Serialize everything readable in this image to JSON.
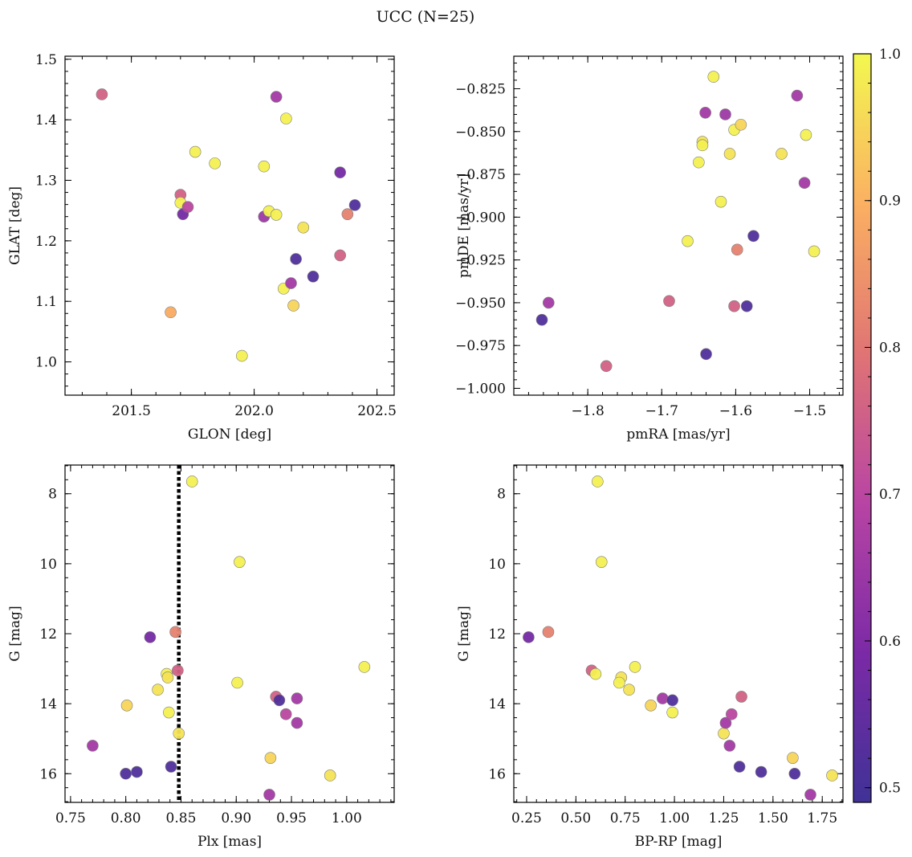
{
  "title": "UCC (N=25)",
  "chart_data": [
    {
      "type": "scatter",
      "xlabel": "GLON [deg]",
      "ylabel": "GLAT [deg]",
      "xlim": [
        201.23,
        202.57
      ],
      "ylim": [
        0.945,
        1.505
      ],
      "xticks": [
        201.5,
        202.0,
        202.5
      ],
      "xtick_labels": [
        "201.5",
        "202.0",
        "202.5"
      ],
      "yticks": [
        1.0,
        1.1,
        1.2,
        1.3,
        1.4,
        1.5
      ],
      "ytick_labels": [
        "1.0",
        "1.1",
        "1.2",
        "1.3",
        "1.4",
        "1.5"
      ],
      "points": [
        {
          "x": 201.38,
          "y": 1.442,
          "c": 0.76
        },
        {
          "x": 201.66,
          "y": 1.082,
          "c": 0.89
        },
        {
          "x": 201.7,
          "y": 1.276,
          "c": 0.76
        },
        {
          "x": 201.7,
          "y": 1.263,
          "c": 0.99
        },
        {
          "x": 201.71,
          "y": 1.244,
          "c": 0.58
        },
        {
          "x": 201.73,
          "y": 1.256,
          "c": 0.7
        },
        {
          "x": 201.76,
          "y": 1.347,
          "c": 0.99
        },
        {
          "x": 201.84,
          "y": 1.328,
          "c": 0.99
        },
        {
          "x": 201.95,
          "y": 1.01,
          "c": 0.99
        },
        {
          "x": 202.04,
          "y": 1.323,
          "c": 0.99
        },
        {
          "x": 202.04,
          "y": 1.24,
          "c": 0.65
        },
        {
          "x": 202.06,
          "y": 1.249,
          "c": 0.99
        },
        {
          "x": 202.09,
          "y": 1.438,
          "c": 0.66
        },
        {
          "x": 202.09,
          "y": 1.243,
          "c": 0.99
        },
        {
          "x": 202.12,
          "y": 1.121,
          "c": 0.99
        },
        {
          "x": 202.13,
          "y": 1.402,
          "c": 0.99
        },
        {
          "x": 202.15,
          "y": 1.13,
          "c": 0.66
        },
        {
          "x": 202.16,
          "y": 1.093,
          "c": 0.95
        },
        {
          "x": 202.17,
          "y": 1.17,
          "c": 0.52
        },
        {
          "x": 202.2,
          "y": 1.222,
          "c": 0.97
        },
        {
          "x": 202.24,
          "y": 1.141,
          "c": 0.52
        },
        {
          "x": 202.35,
          "y": 1.313,
          "c": 0.58
        },
        {
          "x": 202.35,
          "y": 1.176,
          "c": 0.76
        },
        {
          "x": 202.38,
          "y": 1.244,
          "c": 0.82
        },
        {
          "x": 202.41,
          "y": 1.259,
          "c": 0.52
        }
      ]
    },
    {
      "type": "scatter",
      "xlabel": "pmRA [mas/yr]",
      "ylabel": "pmDE [mas/yr]",
      "xlim": [
        -1.9,
        -1.455
      ],
      "ylim": [
        -1.004,
        -0.806
      ],
      "xticks": [
        -1.8,
        -1.7,
        -1.6,
        -1.5
      ],
      "xtick_labels": [
        "−1.8",
        "−1.7",
        "−1.6",
        "−1.5"
      ],
      "yticks": [
        -1.0,
        -0.975,
        -0.95,
        -0.925,
        -0.9,
        -0.875,
        -0.85,
        -0.825
      ],
      "ytick_labels": [
        "−1.000",
        "−0.975",
        "−0.950",
        "−0.925",
        "−0.900",
        "−0.875",
        "−0.850",
        "−0.825"
      ],
      "points": [
        {
          "x": -1.862,
          "y": -0.96,
          "c": 0.52
        },
        {
          "x": -1.853,
          "y": -0.95,
          "c": 0.66
        },
        {
          "x": -1.775,
          "y": -0.987,
          "c": 0.76
        },
        {
          "x": -1.69,
          "y": -0.949,
          "c": 0.76
        },
        {
          "x": -1.665,
          "y": -0.914,
          "c": 0.99
        },
        {
          "x": -1.65,
          "y": -0.868,
          "c": 0.99
        },
        {
          "x": -1.645,
          "y": -0.856,
          "c": 0.97
        },
        {
          "x": -1.645,
          "y": -0.858,
          "c": 0.99
        },
        {
          "x": -1.641,
          "y": -0.839,
          "c": 0.66
        },
        {
          "x": -1.64,
          "y": -0.98,
          "c": 0.52
        },
        {
          "x": -1.63,
          "y": -0.818,
          "c": 0.99
        },
        {
          "x": -1.62,
          "y": -0.891,
          "c": 0.99
        },
        {
          "x": -1.614,
          "y": -0.84,
          "c": 0.65
        },
        {
          "x": -1.608,
          "y": -0.863,
          "c": 0.97
        },
        {
          "x": -1.602,
          "y": -0.952,
          "c": 0.76
        },
        {
          "x": -1.602,
          "y": -0.849,
          "c": 0.99
        },
        {
          "x": -1.598,
          "y": -0.919,
          "c": 0.82
        },
        {
          "x": -1.593,
          "y": -0.846,
          "c": 0.95
        },
        {
          "x": -1.585,
          "y": -0.952,
          "c": 0.52
        },
        {
          "x": -1.576,
          "y": -0.911,
          "c": 0.52
        },
        {
          "x": -1.538,
          "y": -0.863,
          "c": 0.97
        },
        {
          "x": -1.517,
          "y": -0.829,
          "c": 0.66
        },
        {
          "x": -1.507,
          "y": -0.88,
          "c": 0.66
        },
        {
          "x": -1.505,
          "y": -0.852,
          "c": 0.99
        },
        {
          "x": -1.494,
          "y": -0.92,
          "c": 0.99
        }
      ]
    },
    {
      "type": "scatter",
      "xlabel": "Plx [mas]",
      "ylabel": "G [mag]",
      "xlim": [
        0.745,
        1.043
      ],
      "ylim": [
        16.82,
        7.18
      ],
      "y_inverted": true,
      "xticks": [
        0.75,
        0.8,
        0.85,
        0.9,
        0.95,
        1.0
      ],
      "xtick_labels": [
        "0.75",
        "0.80",
        "0.85",
        "0.90",
        "0.95",
        "1.00"
      ],
      "yticks": [
        8,
        10,
        12,
        14,
        16
      ],
      "ytick_labels": [
        "8",
        "10",
        "12",
        "14",
        "16"
      ],
      "vline": {
        "x": 0.848,
        "style": "dotted"
      },
      "points": [
        {
          "x": 0.77,
          "y": 15.2,
          "c": 0.66
        },
        {
          "x": 0.8,
          "y": 16.0,
          "c": 0.52
        },
        {
          "x": 0.81,
          "y": 15.95,
          "c": 0.52
        },
        {
          "x": 0.801,
          "y": 14.05,
          "c": 0.95
        },
        {
          "x": 0.822,
          "y": 12.1,
          "c": 0.58
        },
        {
          "x": 0.829,
          "y": 13.6,
          "c": 0.97
        },
        {
          "x": 0.837,
          "y": 13.15,
          "c": 0.99
        },
        {
          "x": 0.838,
          "y": 13.25,
          "c": 0.97
        },
        {
          "x": 0.839,
          "y": 14.25,
          "c": 0.99
        },
        {
          "x": 0.841,
          "y": 15.8,
          "c": 0.52
        },
        {
          "x": 0.845,
          "y": 11.95,
          "c": 0.82
        },
        {
          "x": 0.847,
          "y": 13.05,
          "c": 0.76
        },
        {
          "x": 0.848,
          "y": 14.85,
          "c": 0.97
        },
        {
          "x": 0.86,
          "y": 7.65,
          "c": 0.99
        },
        {
          "x": 0.901,
          "y": 13.4,
          "c": 0.99
        },
        {
          "x": 0.903,
          "y": 9.95,
          "c": 0.99
        },
        {
          "x": 0.93,
          "y": 16.6,
          "c": 0.66
        },
        {
          "x": 0.931,
          "y": 15.55,
          "c": 0.95
        },
        {
          "x": 0.936,
          "y": 13.8,
          "c": 0.76
        },
        {
          "x": 0.939,
          "y": 13.9,
          "c": 0.52
        },
        {
          "x": 0.945,
          "y": 14.3,
          "c": 0.7
        },
        {
          "x": 0.955,
          "y": 13.85,
          "c": 0.66
        },
        {
          "x": 0.955,
          "y": 14.55,
          "c": 0.66
        },
        {
          "x": 0.985,
          "y": 16.05,
          "c": 0.97
        },
        {
          "x": 1.016,
          "y": 12.95,
          "c": 0.99
        }
      ]
    },
    {
      "type": "scatter",
      "xlabel": "BP-RP [mag]",
      "ylabel": "G [mag]",
      "xlim": [
        0.185,
        1.855
      ],
      "ylim": [
        16.82,
        7.18
      ],
      "y_inverted": true,
      "xticks": [
        0.25,
        0.5,
        0.75,
        1.0,
        1.25,
        1.5,
        1.75
      ],
      "xtick_labels": [
        "0.25",
        "0.50",
        "0.75",
        "1.00",
        "1.25",
        "1.50",
        "1.75"
      ],
      "yticks": [
        8,
        10,
        12,
        14,
        16
      ],
      "ytick_labels": [
        "8",
        "10",
        "12",
        "14",
        "16"
      ],
      "points": [
        {
          "x": 0.26,
          "y": 12.1,
          "c": 0.58
        },
        {
          "x": 0.36,
          "y": 11.95,
          "c": 0.82
        },
        {
          "x": 0.58,
          "y": 13.05,
          "c": 0.76
        },
        {
          "x": 0.6,
          "y": 13.15,
          "c": 0.99
        },
        {
          "x": 0.61,
          "y": 7.65,
          "c": 0.99
        },
        {
          "x": 0.63,
          "y": 9.95,
          "c": 0.99
        },
        {
          "x": 0.73,
          "y": 13.25,
          "c": 0.97
        },
        {
          "x": 0.72,
          "y": 13.4,
          "c": 0.99
        },
        {
          "x": 0.77,
          "y": 13.6,
          "c": 0.97
        },
        {
          "x": 0.8,
          "y": 12.95,
          "c": 0.99
        },
        {
          "x": 0.88,
          "y": 14.05,
          "c": 0.95
        },
        {
          "x": 0.94,
          "y": 13.85,
          "c": 0.66
        },
        {
          "x": 0.99,
          "y": 13.9,
          "c": 0.52
        },
        {
          "x": 0.99,
          "y": 14.25,
          "c": 0.99
        },
        {
          "x": 1.25,
          "y": 14.85,
          "c": 0.97
        },
        {
          "x": 1.26,
          "y": 14.55,
          "c": 0.66
        },
        {
          "x": 1.28,
          "y": 15.2,
          "c": 0.66
        },
        {
          "x": 1.29,
          "y": 14.3,
          "c": 0.7
        },
        {
          "x": 1.34,
          "y": 13.8,
          "c": 0.76
        },
        {
          "x": 1.33,
          "y": 15.8,
          "c": 0.52
        },
        {
          "x": 1.44,
          "y": 15.95,
          "c": 0.52
        },
        {
          "x": 1.6,
          "y": 15.55,
          "c": 0.95
        },
        {
          "x": 1.61,
          "y": 16.0,
          "c": 0.52
        },
        {
          "x": 1.69,
          "y": 16.6,
          "c": 0.66
        },
        {
          "x": 1.8,
          "y": 16.05,
          "c": 0.97
        }
      ]
    }
  ],
  "colorbar": {
    "colormap": "plasma",
    "range": [
      0.49,
      1.0
    ],
    "ticks": [
      0.5,
      0.6,
      0.7,
      0.8,
      0.9,
      1.0
    ],
    "tick_labels": [
      "0.5",
      "0.6",
      "0.7",
      "0.8",
      "0.9",
      "1.0"
    ]
  }
}
